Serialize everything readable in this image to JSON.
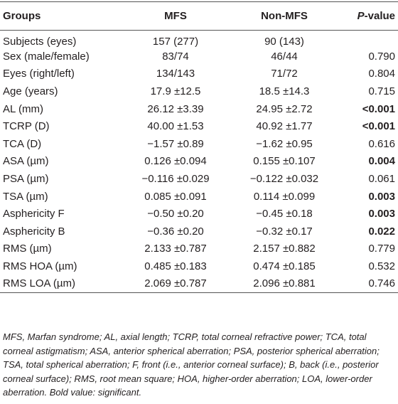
{
  "table": {
    "header": [
      "Groups",
      "MFS",
      "Non-MFS",
      [
        "P",
        "-value"
      ]
    ],
    "rows": [
      {
        "group": "Subjects (eyes)",
        "mfs": "157 (277)",
        "non_mfs": "90 (143)"
      },
      {
        "group": "Sex (male/female)",
        "mfs": "83/74",
        "non_mfs": "46/44",
        "p": "0.790",
        "bold": false
      },
      {
        "group": "Eyes (right/left)",
        "mfs": "134/143",
        "non_mfs": "71/72",
        "p": "0.804",
        "bold": false
      },
      {
        "group": "Age (years)",
        "mfs": "17.9 ±12.5",
        "non_mfs": "18.5 ±14.3",
        "p": "0.715",
        "bold": false
      },
      {
        "group": "AL (mm)",
        "mfs": "26.12 ±3.39",
        "non_mfs": "24.95 ±2.72",
        "p": "<0.001",
        "bold": true
      },
      {
        "group": "TCRP (D)",
        "mfs": "40.00 ±1.53",
        "non_mfs": "40.92 ±1.77",
        "p": "<0.001",
        "bold": true
      },
      {
        "group": "TCA (D)",
        "mfs": "−1.57 ±0.89",
        "non_mfs": "−1.62 ±0.95",
        "p": "0.616",
        "bold": false
      },
      {
        "group": "ASA (µm)",
        "mfs": "0.126 ±0.094",
        "non_mfs": "0.155 ±0.107",
        "p": "0.004",
        "bold": true
      },
      {
        "group": "PSA (µm)",
        "mfs": "−0.116 ±0.029",
        "non_mfs": "−0.122 ±0.032",
        "p": "0.061",
        "bold": false
      },
      {
        "group": "TSA (µm)",
        "mfs": "0.085 ±0.091",
        "non_mfs": "0.114 ±0.099",
        "p": "0.003",
        "bold": true
      },
      {
        "group": "Asphericity F",
        "mfs": "−0.50 ±0.20",
        "non_mfs": "−0.45 ±0.18",
        "p": "0.003",
        "bold": true
      },
      {
        "group": "Asphericity B",
        "mfs": "−0.36 ±0.20",
        "non_mfs": "−0.32 ±0.17",
        "p": "0.022",
        "bold": true
      },
      {
        "group": "RMS (µm)",
        "mfs": "2.133 ±0.787",
        "non_mfs": "2.157 ±0.882",
        "p": "0.779",
        "bold": false
      },
      {
        "group": "RMS HOA (µm)",
        "mfs": "0.485 ±0.183",
        "non_mfs": "0.474 ±0.185",
        "p": "0.532",
        "bold": false
      },
      {
        "group": "RMS LOA (µm)",
        "mfs": "2.069 ±0.787",
        "non_mfs": "2.096 ±0.881",
        "p": "0.746",
        "bold": false
      }
    ],
    "note": "MFS, Marfan syndrome; AL, axial length; TCRP, total corneal refractive power; TCA, total corneal astigmatism; ASA, anterior spherical aberration; PSA, posterior spherical aberration; TSA, total spherical aberration; F, front (i.e., anterior corneal surface); B, back (i.e., posterior corneal surface); RMS, root mean square; HOA, higher-order aberration; LOA, lower-order aberration. Bold value: significant."
  }
}
